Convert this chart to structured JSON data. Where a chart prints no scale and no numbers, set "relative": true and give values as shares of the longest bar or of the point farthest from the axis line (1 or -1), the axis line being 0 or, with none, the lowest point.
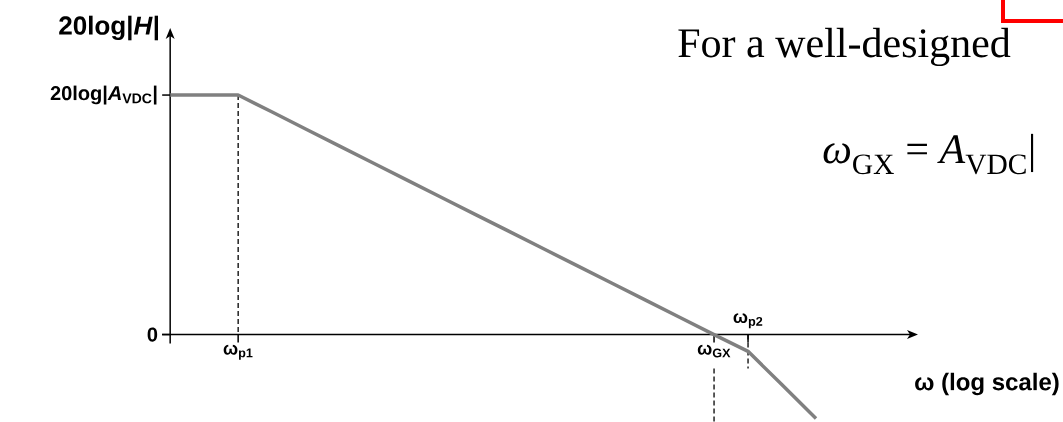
{
  "chart_data": {
    "type": "line",
    "relative": true,
    "xlabel": "ω (log scale)",
    "ylabel": "20log|*H*|",
    "categories": [
      null,
      null,
      "ω$_{p1}$",
      null,
      null,
      null,
      null,
      null,
      null,
      null,
      null,
      null,
      null,
      null,
      null,
      null,
      "ω$_{GX}$",
      "ω$_{p2}$",
      null,
      null
    ],
    "values": [
      1,
      1,
      1,
      0.929,
      0.857,
      0.786,
      0.714,
      0.643,
      0.571,
      0.5,
      0.429,
      0.357,
      0.286,
      0.214,
      0.143,
      0.071,
      0,
      -0.07,
      -0.21,
      -0.35
    ],
    "color": "#808080",
    "ref_lines": [
      {
        "axis": "x",
        "value": "ω$_{p1}$",
        "line_style": "dashed"
      },
      {
        "axis": "x",
        "value": "ω$_{GX}$",
        "line_style": "dashed"
      },
      {
        "axis": "x",
        "value": "ω$_{p2}$",
        "line_style": "dashed"
      }
    ],
    "annotations": [
      "For a well-designed",
      "*ω*$_{GX}$ = *A*$_{VDC}$|",
      "20log|*A*$_{VDC}$|",
      "0"
    ]
  }
}
